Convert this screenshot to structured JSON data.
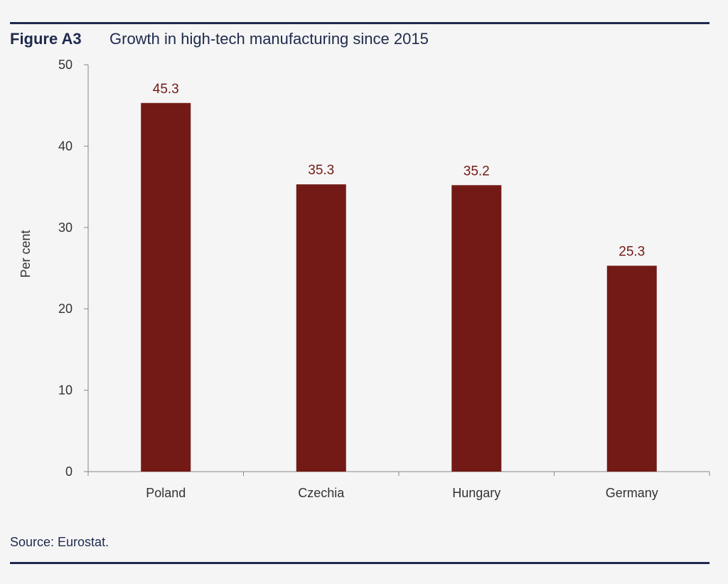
{
  "figure": {
    "label": "Figure A3",
    "title": "Growth in high-tech manufacturing since 2015"
  },
  "source": "Source: Eurostat.",
  "colors": {
    "bar": "#731a16",
    "label": "#731a16",
    "rule": "#1f2a4d",
    "axis": "#888888"
  },
  "chart_data": {
    "type": "bar",
    "categories": [
      "Poland",
      "Czechia",
      "Hungary",
      "Germany"
    ],
    "values": [
      45.3,
      35.3,
      35.2,
      25.3
    ],
    "data_labels": [
      "45.3",
      "35.3",
      "35.2",
      "25.3"
    ],
    "title": "Growth in high-tech manufacturing since 2015",
    "xlabel": "",
    "ylabel": "Per cent",
    "ylim": [
      0,
      50
    ],
    "yticks": [
      0,
      10,
      20,
      30,
      40,
      50
    ],
    "grid": false,
    "legend": "none"
  }
}
